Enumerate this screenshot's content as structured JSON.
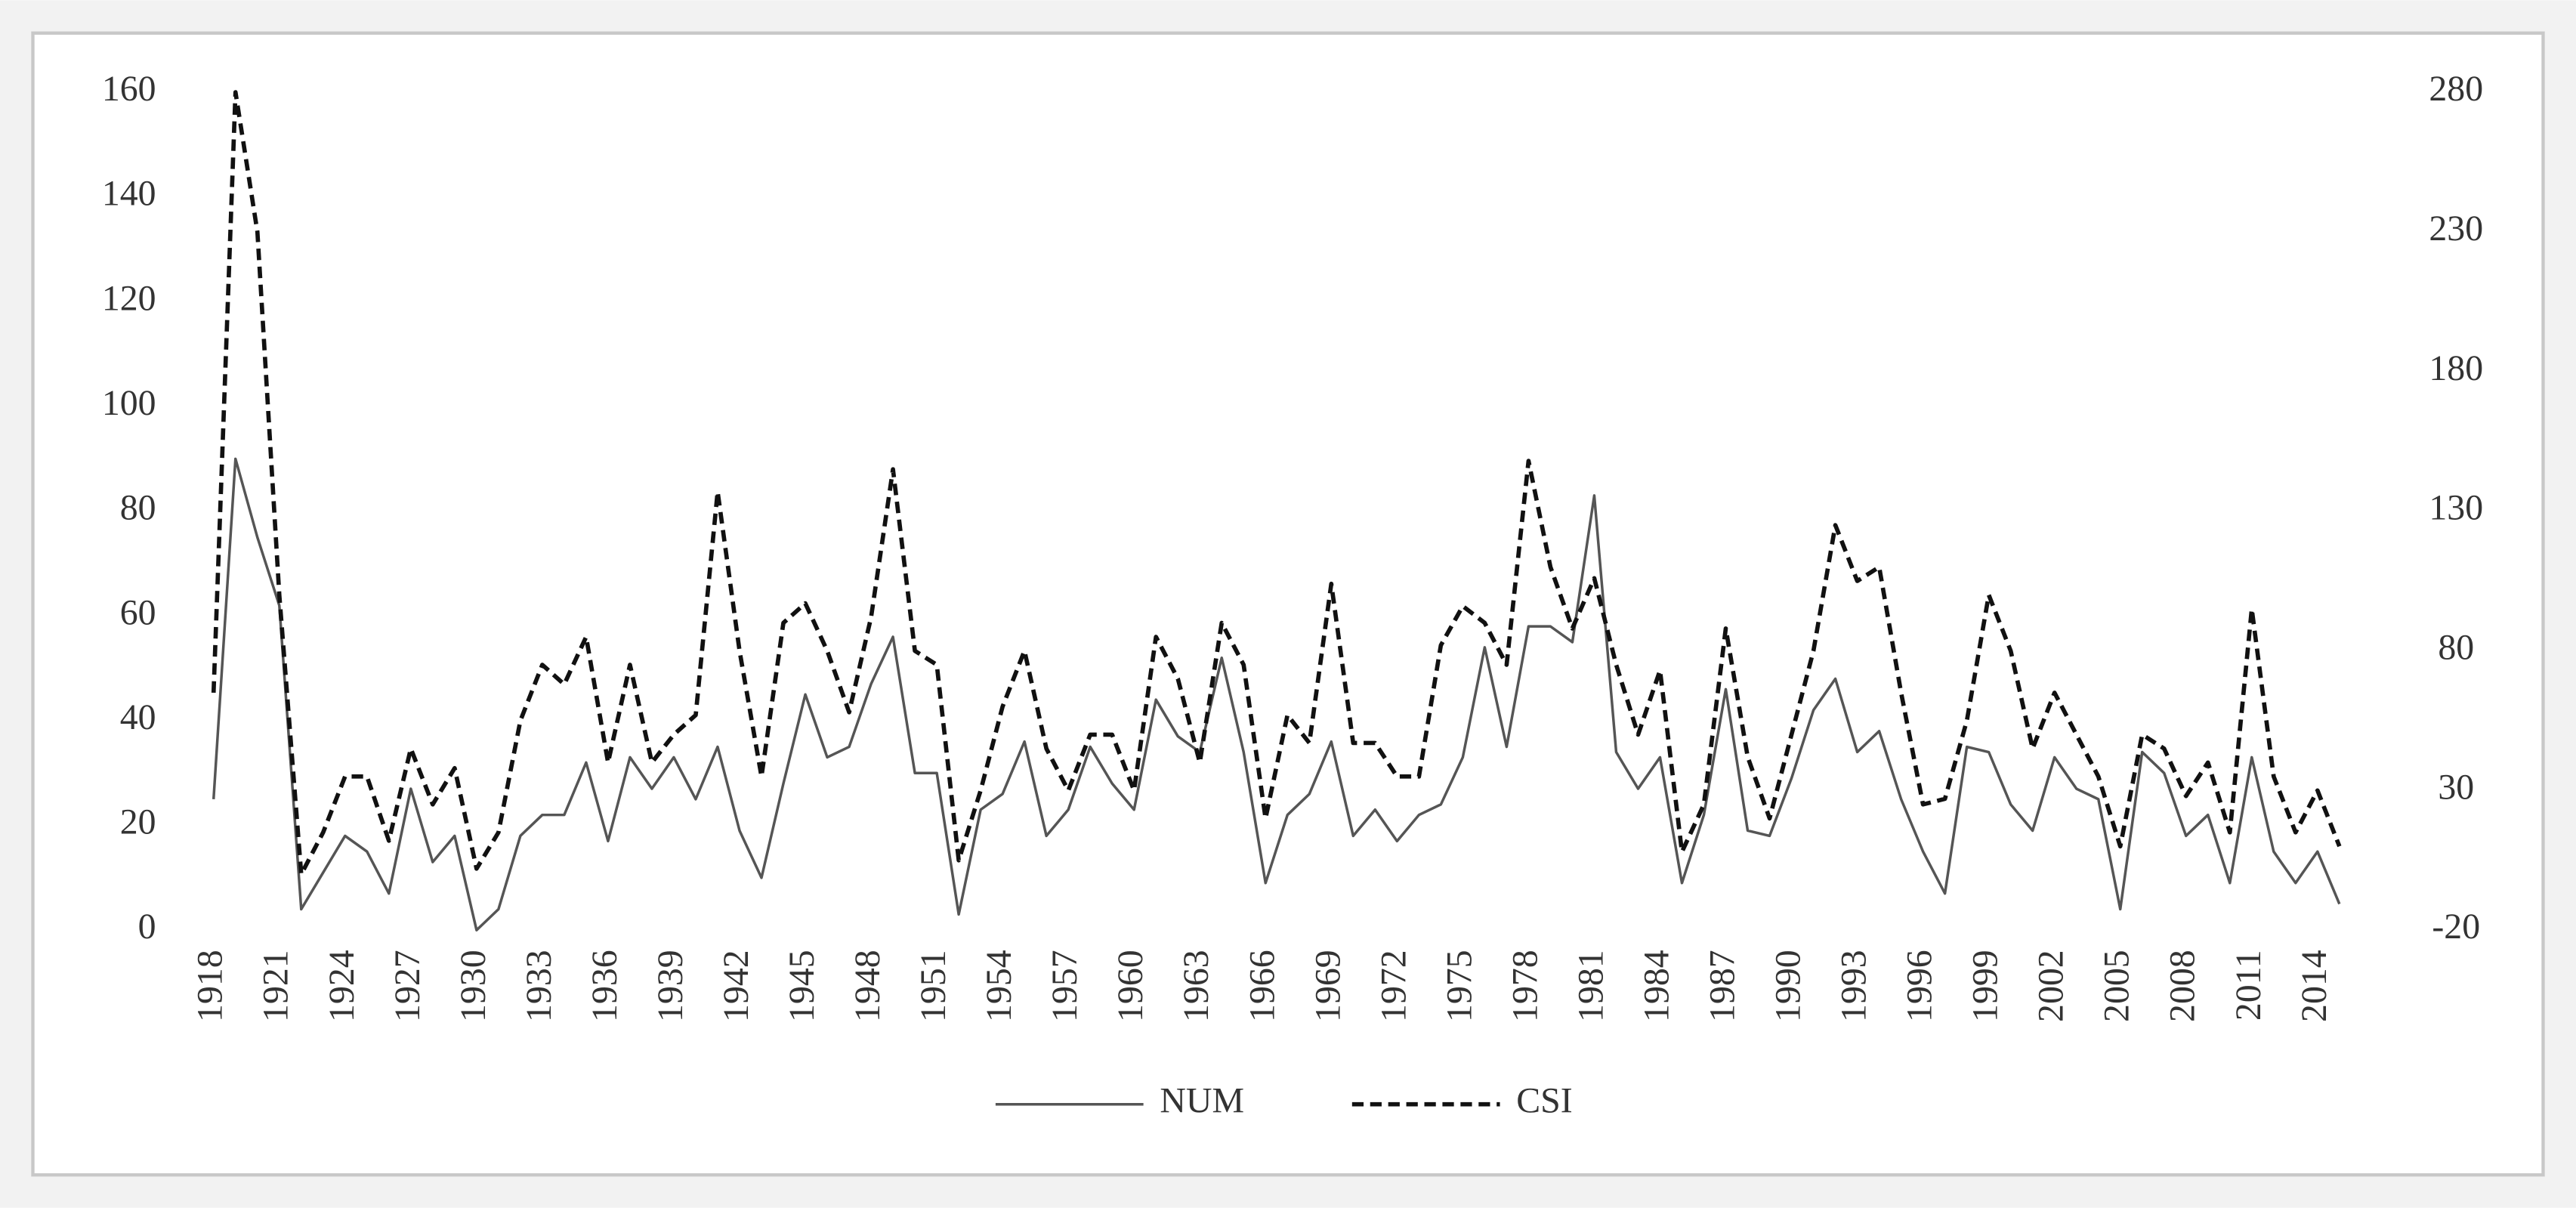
{
  "chart_data": {
    "type": "line",
    "x": [
      1918,
      1919,
      1920,
      1921,
      1922,
      1923,
      1924,
      1925,
      1926,
      1927,
      1928,
      1929,
      1930,
      1931,
      1932,
      1933,
      1934,
      1935,
      1936,
      1937,
      1938,
      1939,
      1940,
      1941,
      1942,
      1943,
      1944,
      1945,
      1946,
      1947,
      1948,
      1949,
      1950,
      1951,
      1952,
      1953,
      1954,
      1955,
      1956,
      1957,
      1958,
      1959,
      1960,
      1961,
      1962,
      1963,
      1964,
      1965,
      1966,
      1967,
      1968,
      1969,
      1970,
      1971,
      1972,
      1973,
      1974,
      1975,
      1976,
      1977,
      1978,
      1979,
      1980,
      1981,
      1982,
      1983,
      1984,
      1985,
      1986,
      1987,
      1988,
      1989,
      1990,
      1991,
      1992,
      1993,
      1994,
      1995,
      1996,
      1997,
      1998,
      1999,
      2000,
      2001,
      2002,
      2003,
      2004,
      2005,
      2006,
      2007,
      2008,
      2009,
      2010,
      2011,
      2012,
      2013,
      2014,
      2015
    ],
    "xlim": [
      1918,
      2015
    ],
    "xticks": [
      1918,
      1921,
      1924,
      1927,
      1930,
      1933,
      1936,
      1939,
      1942,
      1945,
      1948,
      1951,
      1954,
      1957,
      1960,
      1963,
      1966,
      1969,
      1972,
      1975,
      1978,
      1981,
      1984,
      1987,
      1990,
      1993,
      1996,
      1999,
      2002,
      2005,
      2008,
      2011,
      2014
    ],
    "ylim": [
      0,
      160
    ],
    "yticks": [
      0,
      20,
      40,
      60,
      80,
      100,
      120,
      140,
      160
    ],
    "y2lim": [
      -20,
      280
    ],
    "y2ticks": [
      -20,
      30,
      80,
      130,
      180,
      230,
      280
    ],
    "legend": "bottom",
    "series": [
      {
        "name": "NUM",
        "color": "#555555",
        "dashed": false,
        "axis": "y",
        "values": [
          25,
          90,
          75,
          62,
          4,
          11,
          18,
          15,
          7,
          27,
          13,
          18,
          0,
          4,
          18,
          22,
          22,
          32,
          17,
          33,
          27,
          33,
          25,
          35,
          19,
          10,
          28,
          45,
          33,
          35,
          47,
          56,
          30,
          30,
          3,
          23,
          26,
          36,
          18,
          23,
          35,
          28,
          23,
          44,
          37,
          34,
          52,
          34,
          9,
          22,
          26,
          36,
          18,
          23,
          17,
          22,
          24,
          33,
          54,
          35,
          58,
          58,
          55,
          83,
          34,
          27,
          33,
          9,
          22,
          46,
          19,
          18,
          29,
          42,
          48,
          34,
          38,
          25,
          15,
          7,
          35,
          34,
          24,
          19,
          33,
          27,
          25,
          4,
          34,
          30,
          18,
          22,
          9,
          33,
          15,
          9,
          15,
          5
        ]
      },
      {
        "name": "CSI",
        "color": "#111111",
        "dashed": true,
        "axis": "y2",
        "values": [
          65,
          280,
          230,
          100,
          0,
          15,
          35,
          35,
          12,
          45,
          25,
          38,
          2,
          15,
          55,
          75,
          68,
          85,
          40,
          75,
          40,
          50,
          57,
          137,
          80,
          35,
          90,
          97,
          80,
          58,
          92,
          145,
          80,
          75,
          5,
          30,
          60,
          80,
          45,
          30,
          50,
          50,
          30,
          85,
          70,
          40,
          90,
          75,
          20,
          57,
          47,
          104,
          47,
          47,
          35,
          35,
          82,
          96,
          90,
          75,
          148,
          110,
          88,
          106,
          75,
          50,
          73,
          8,
          25,
          88,
          42,
          20,
          50,
          80,
          125,
          105,
          110,
          65,
          25,
          27,
          55,
          100,
          80,
          45,
          65,
          50,
          35,
          10,
          50,
          45,
          28,
          40,
          15,
          95,
          35,
          15,
          30,
          10
        ]
      }
    ]
  }
}
